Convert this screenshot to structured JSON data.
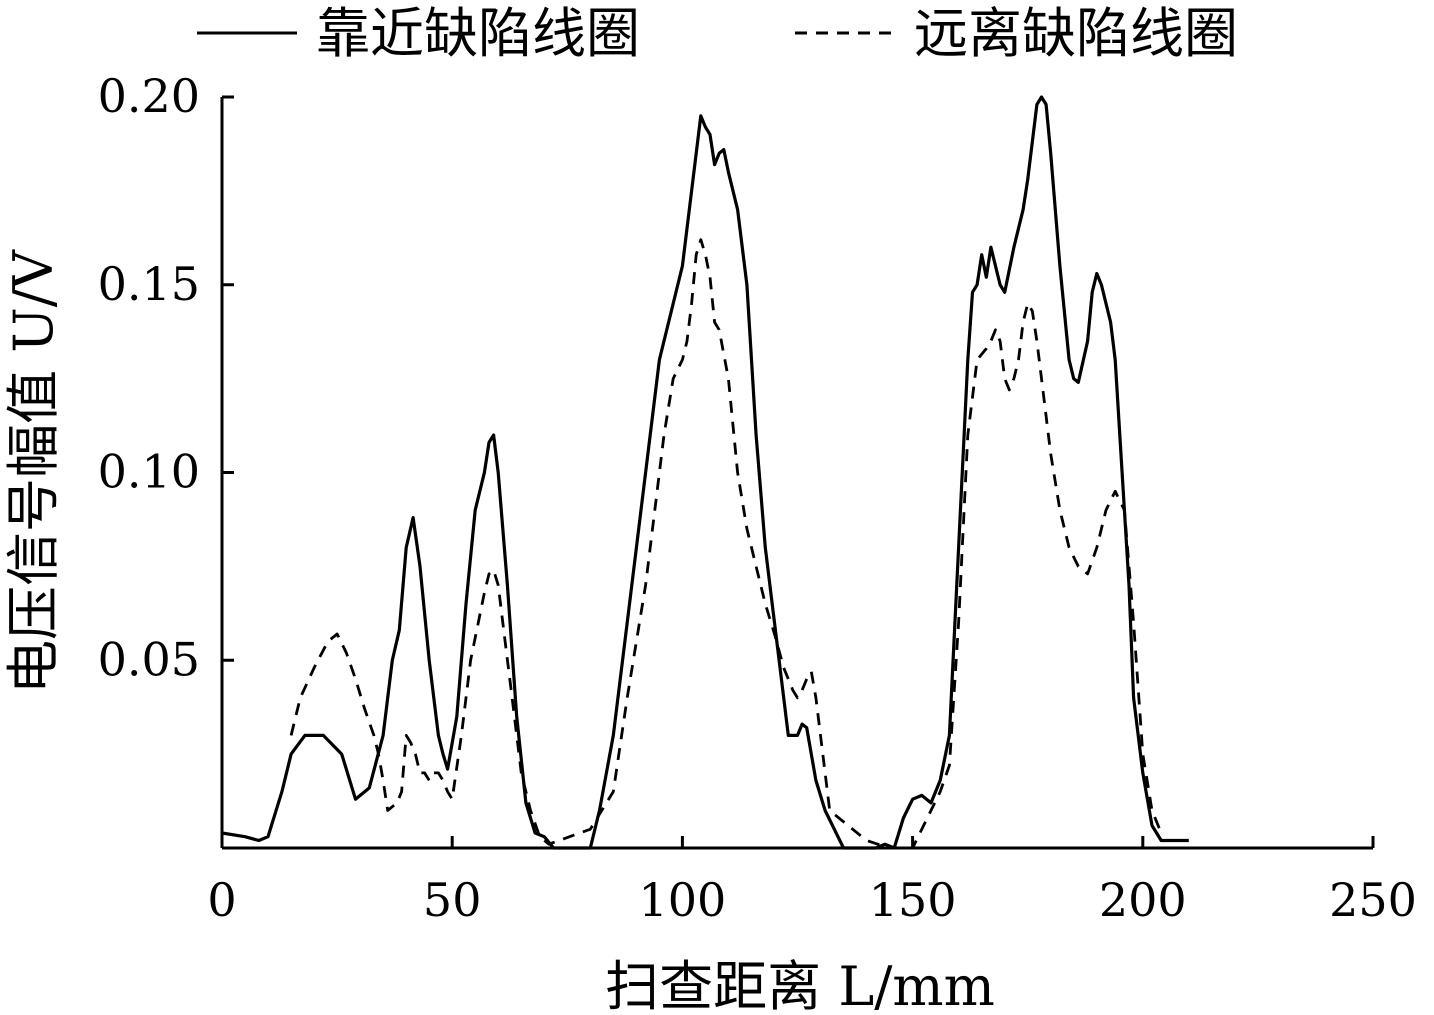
{
  "chart_data": {
    "type": "line",
    "title": "",
    "xlabel": "扫查距离 L/mm",
    "ylabel": "电压信号幅值 U/V",
    "xlim": [
      0,
      250
    ],
    "ylim": [
      0,
      0.2
    ],
    "x_ticks": [
      "0",
      "50",
      "100",
      "150",
      "200",
      "250"
    ],
    "y_ticks": [
      "0.05",
      "0.10",
      "0.15",
      "0.20"
    ],
    "legend_position": "top",
    "grid": false,
    "series": [
      {
        "name": "靠近缺陷线圈",
        "style": "solid",
        "color": "#000000",
        "x": [
          0,
          5,
          8,
          10,
          13,
          15,
          18,
          22,
          26,
          29,
          32,
          35,
          37,
          38.5,
          40,
          41.5,
          43,
          45,
          47,
          48,
          49,
          51,
          53,
          55,
          57,
          58,
          59,
          60,
          62,
          64,
          66,
          68,
          70,
          72,
          76,
          80,
          82,
          85,
          88,
          91,
          93,
          95,
          98,
          100,
          101,
          103,
          104,
          105,
          106,
          107,
          108,
          109,
          110,
          112,
          114,
          116,
          118,
          120,
          122,
          123,
          125,
          126,
          127,
          128,
          129,
          131,
          133,
          135,
          138,
          140,
          142,
          144,
          146,
          148,
          150,
          152,
          154,
          156,
          158,
          160,
          162,
          163,
          164,
          165,
          166,
          167,
          168,
          169,
          170,
          172,
          174,
          175,
          176,
          177,
          178,
          179,
          180,
          182,
          184,
          185,
          186,
          188,
          189,
          190,
          191,
          192,
          193,
          194,
          195,
          197,
          198,
          200,
          202,
          204,
          206,
          208,
          210
        ],
        "y": [
          0.004,
          0.003,
          0.002,
          0.003,
          0.015,
          0.025,
          0.03,
          0.03,
          0.025,
          0.013,
          0.016,
          0.03,
          0.05,
          0.058,
          0.08,
          0.088,
          0.075,
          0.05,
          0.03,
          0.025,
          0.021,
          0.035,
          0.065,
          0.09,
          0.1,
          0.108,
          0.11,
          0.1,
          0.07,
          0.035,
          0.012,
          0.004,
          0.003,
          0.0,
          0.0,
          0.0,
          0.01,
          0.03,
          0.06,
          0.09,
          0.11,
          0.13,
          0.145,
          0.155,
          0.165,
          0.185,
          0.195,
          0.192,
          0.19,
          0.182,
          0.185,
          0.186,
          0.18,
          0.17,
          0.15,
          0.11,
          0.08,
          0.06,
          0.04,
          0.03,
          0.03,
          0.033,
          0.032,
          0.025,
          0.018,
          0.01,
          0.005,
          0.0,
          0.0,
          0.0,
          0.0,
          0.001,
          0.0,
          0.008,
          0.013,
          0.014,
          0.012,
          0.018,
          0.03,
          0.08,
          0.13,
          0.148,
          0.15,
          0.158,
          0.152,
          0.16,
          0.155,
          0.15,
          0.148,
          0.16,
          0.17,
          0.178,
          0.188,
          0.198,
          0.2,
          0.198,
          0.185,
          0.155,
          0.13,
          0.125,
          0.124,
          0.135,
          0.148,
          0.153,
          0.15,
          0.145,
          0.14,
          0.13,
          0.11,
          0.07,
          0.04,
          0.02,
          0.006,
          0.002,
          0.002,
          0.002,
          0.002
        ]
      },
      {
        "name": "远离缺陷线圈",
        "style": "dashed",
        "color": "#000000",
        "x": [
          15,
          17,
          20,
          23,
          25,
          27,
          29,
          31,
          33,
          34,
          35,
          36,
          37,
          38,
          39,
          40,
          41,
          42,
          43,
          44,
          45,
          46,
          47,
          48,
          49,
          50,
          52,
          54,
          56,
          57,
          58,
          59,
          60,
          61,
          63,
          65,
          67,
          69,
          71,
          80,
          85,
          88,
          92,
          94,
          96,
          98,
          100,
          101,
          102,
          103,
          104,
          105,
          106,
          107,
          108,
          110,
          112,
          114,
          116,
          118,
          120,
          122,
          124,
          125,
          126,
          127,
          128,
          129,
          130,
          131,
          132,
          140,
          145,
          150,
          152,
          154,
          156,
          158,
          160,
          162,
          164,
          166,
          167,
          168,
          169,
          170,
          171,
          172,
          173,
          174,
          175,
          176,
          177,
          178,
          180,
          182,
          184,
          186,
          188,
          190,
          192,
          194,
          196,
          198,
          200,
          202,
          204
        ],
        "y": [
          0.03,
          0.04,
          0.048,
          0.055,
          0.057,
          0.052,
          0.045,
          0.037,
          0.03,
          0.025,
          0.018,
          0.01,
          0.011,
          0.012,
          0.015,
          0.03,
          0.028,
          0.025,
          0.02,
          0.02,
          0.018,
          0.02,
          0.02,
          0.018,
          0.015,
          0.013,
          0.03,
          0.05,
          0.062,
          0.068,
          0.073,
          0.074,
          0.07,
          0.06,
          0.04,
          0.02,
          0.01,
          0.003,
          0.001,
          0.005,
          0.015,
          0.04,
          0.07,
          0.09,
          0.11,
          0.125,
          0.13,
          0.135,
          0.145,
          0.158,
          0.162,
          0.158,
          0.152,
          0.14,
          0.138,
          0.125,
          0.1,
          0.085,
          0.075,
          0.065,
          0.057,
          0.048,
          0.042,
          0.04,
          0.042,
          0.045,
          0.047,
          0.04,
          0.03,
          0.02,
          0.01,
          0.002,
          0.0,
          0.0,
          0.005,
          0.01,
          0.015,
          0.022,
          0.06,
          0.11,
          0.13,
          0.133,
          0.135,
          0.138,
          0.135,
          0.125,
          0.122,
          0.125,
          0.13,
          0.14,
          0.145,
          0.143,
          0.135,
          0.125,
          0.105,
          0.09,
          0.08,
          0.075,
          0.073,
          0.08,
          0.09,
          0.095,
          0.09,
          0.06,
          0.025,
          0.01,
          0.004
        ]
      }
    ]
  }
}
